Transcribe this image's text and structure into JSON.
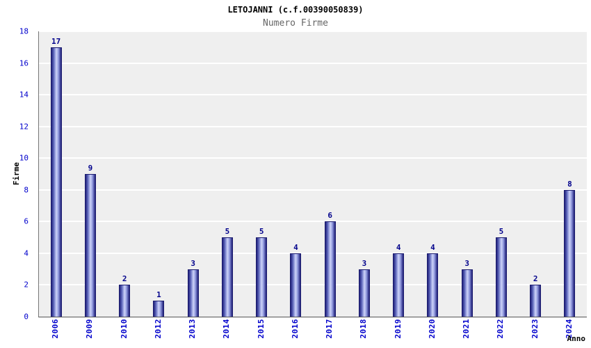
{
  "title": "LETOJANNI (c.f.00390050839)",
  "subtitle": "Numero Firme",
  "chart_data": {
    "type": "bar",
    "title": "LETOJANNI (c.f.00390050839)",
    "subtitle": "Numero Firme",
    "categories": [
      "2006",
      "2009",
      "2010",
      "2012",
      "2013",
      "2014",
      "2015",
      "2016",
      "2017",
      "2018",
      "2019",
      "2020",
      "2021",
      "2022",
      "2023",
      "2024"
    ],
    "values": [
      17,
      9,
      2,
      1,
      3,
      5,
      5,
      4,
      6,
      3,
      4,
      4,
      3,
      5,
      2,
      8
    ],
    "xlabel": "Anno",
    "ylabel": "Firme",
    "ylim": [
      0,
      18
    ],
    "ytick_step": 2,
    "grid": true,
    "legend": "none",
    "colors": {
      "bar_edge": "#1b1b6e",
      "bar_dark": "#20207a",
      "bar_light": "#ccd2f7",
      "tick_label": "#0000cc",
      "value_label": "#00008b",
      "plot_background": "#efefef",
      "grid_line": "#ffffff",
      "subtitle_text": "#666666"
    }
  }
}
